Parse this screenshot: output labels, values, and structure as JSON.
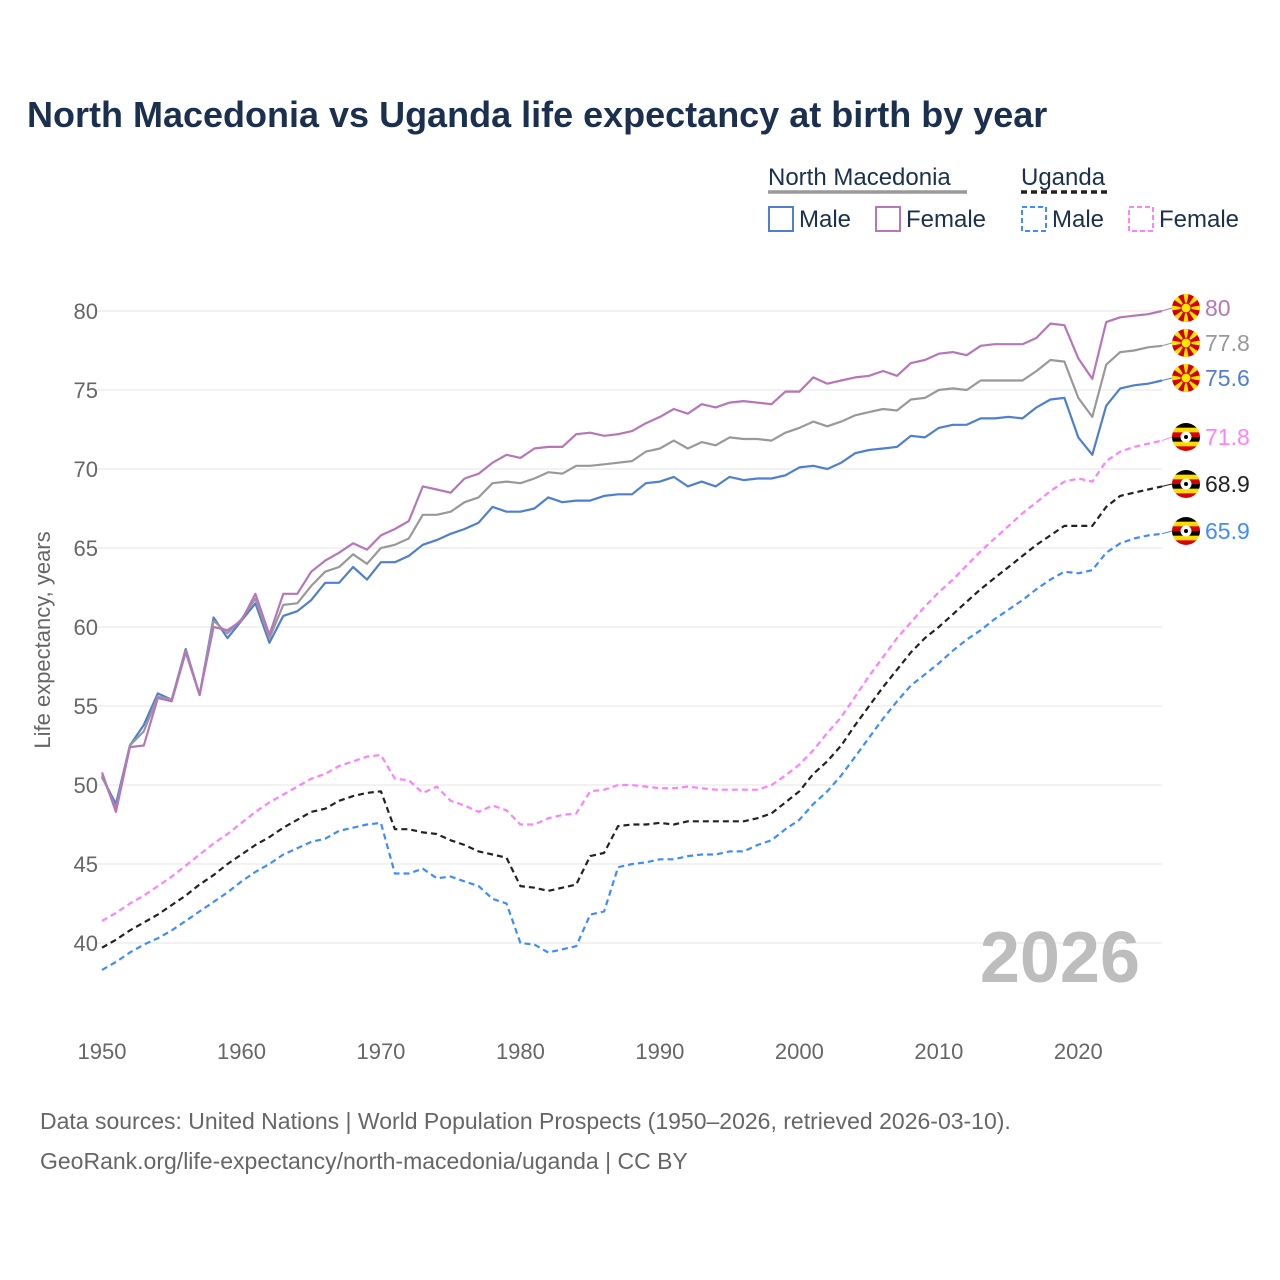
{
  "title": "North Macedonia vs Uganda life expectancy at birth by year",
  "legend": {
    "groups": [
      {
        "name": "North Macedonia",
        "items": [
          "Male",
          "Female"
        ]
      },
      {
        "name": "Uganda",
        "items": [
          "Male",
          "Female"
        ]
      }
    ]
  },
  "watermark_year": "2026",
  "footer": {
    "line1": "Data sources: United Nations | World Population Prospects (1950–2026, retrieved 2026-03-10).",
    "line2": "GeoRank.org/life-expectancy/north-macedonia/uganda | CC BY"
  },
  "chart_data": {
    "type": "line",
    "title": "North Macedonia vs Uganda life expectancy at birth by year",
    "xlabel": "",
    "ylabel": "Life expectancy, years",
    "xlim": [
      1950,
      2026
    ],
    "ylim": [
      36,
      82
    ],
    "xticks": [
      1950,
      1960,
      1970,
      1980,
      1990,
      2000,
      2010,
      2020
    ],
    "yticks": [
      40,
      45,
      50,
      55,
      60,
      65,
      70,
      75,
      80
    ],
    "grid": true,
    "legend_position": "top-right",
    "x_start": 1950,
    "series": [
      {
        "name": "North Macedonia Female",
        "country": "North Macedonia",
        "flag": "north-macedonia",
        "color": "#b676b9",
        "dashed": false,
        "end_label": "80",
        "values": [
          50.8,
          48.3,
          52.4,
          52.5,
          55.5,
          55.3,
          58.4,
          55.7,
          60.0,
          59.8,
          60.4,
          62.1,
          59.5,
          62.1,
          62.1,
          63.5,
          64.2,
          64.7,
          65.3,
          64.9,
          65.8,
          66.2,
          66.7,
          68.9,
          68.7,
          68.5,
          69.4,
          69.7,
          70.4,
          70.9,
          70.7,
          71.3,
          71.4,
          71.4,
          72.2,
          72.3,
          72.1,
          72.2,
          72.4,
          72.9,
          73.3,
          73.8,
          73.5,
          74.1,
          73.9,
          74.2,
          74.3,
          74.2,
          74.1,
          74.9,
          74.9,
          75.8,
          75.4,
          75.6,
          75.8,
          75.9,
          76.2,
          75.9,
          76.7,
          76.9,
          77.3,
          77.4,
          77.2,
          77.8,
          77.9,
          77.9,
          77.9,
          78.3,
          79.2,
          79.1,
          77.0,
          75.7,
          79.3,
          79.6,
          79.7,
          79.8,
          80.0
        ]
      },
      {
        "name": "North Macedonia Total",
        "country": "North Macedonia",
        "flag": "north-macedonia",
        "color": "#999999",
        "dashed": false,
        "end_label": "77.8",
        "values": [
          50.6,
          48.5,
          52.5,
          53.4,
          55.6,
          55.4,
          58.5,
          55.7,
          60.4,
          59.6,
          60.5,
          61.8,
          59.3,
          61.4,
          61.5,
          62.6,
          63.5,
          63.8,
          64.6,
          64.0,
          65.0,
          65.2,
          65.6,
          67.1,
          67.1,
          67.3,
          67.9,
          68.2,
          69.1,
          69.2,
          69.1,
          69.4,
          69.8,
          69.7,
          70.2,
          70.2,
          70.3,
          70.4,
          70.5,
          71.1,
          71.3,
          71.8,
          71.3,
          71.7,
          71.5,
          72.0,
          71.9,
          71.9,
          71.8,
          72.3,
          72.6,
          73.0,
          72.7,
          73.0,
          73.4,
          73.6,
          73.8,
          73.7,
          74.4,
          74.5,
          75.0,
          75.1,
          75.0,
          75.6,
          75.6,
          75.6,
          75.6,
          76.2,
          76.9,
          76.8,
          74.5,
          73.3,
          76.6,
          77.4,
          77.5,
          77.7,
          77.8
        ]
      },
      {
        "name": "North Macedonia Male",
        "country": "North Macedonia",
        "flag": "north-macedonia",
        "color": "#4f7fcf",
        "dashed": false,
        "end_label": "75.6",
        "values": [
          50.5,
          48.8,
          52.5,
          53.8,
          55.8,
          55.4,
          58.6,
          55.7,
          60.6,
          59.3,
          60.4,
          61.5,
          59.0,
          60.7,
          61.0,
          61.7,
          62.8,
          62.8,
          63.8,
          63.0,
          64.1,
          64.1,
          64.5,
          65.2,
          65.5,
          65.9,
          66.2,
          66.6,
          67.6,
          67.3,
          67.3,
          67.5,
          68.2,
          67.9,
          68.0,
          68.0,
          68.3,
          68.4,
          68.4,
          69.1,
          69.2,
          69.5,
          68.9,
          69.2,
          68.9,
          69.5,
          69.3,
          69.4,
          69.4,
          69.6,
          70.1,
          70.2,
          70.0,
          70.4,
          71.0,
          71.2,
          71.3,
          71.4,
          72.1,
          72.0,
          72.6,
          72.8,
          72.8,
          73.2,
          73.2,
          73.3,
          73.2,
          73.9,
          74.4,
          74.5,
          72.0,
          70.9,
          74.0,
          75.1,
          75.3,
          75.4,
          75.6
        ]
      },
      {
        "name": "Uganda Female",
        "country": "Uganda",
        "flag": "uganda",
        "color": "#ff80ff",
        "dashed": true,
        "end_label": "71.8",
        "values": [
          41.4,
          41.9,
          42.5,
          43.0,
          43.6,
          44.2,
          44.9,
          45.6,
          46.3,
          46.9,
          47.6,
          48.3,
          48.9,
          49.4,
          49.9,
          50.4,
          50.7,
          51.2,
          51.5,
          51.8,
          51.9,
          50.4,
          50.3,
          49.5,
          49.9,
          49.0,
          48.7,
          48.3,
          48.7,
          48.4,
          47.5,
          47.5,
          47.9,
          48.1,
          48.2,
          49.6,
          49.7,
          50.0,
          50.0,
          49.9,
          49.8,
          49.8,
          49.9,
          49.8,
          49.7,
          49.7,
          49.7,
          49.7,
          50.0,
          50.6,
          51.3,
          52.2,
          53.3,
          54.3,
          55.6,
          56.9,
          58.1,
          59.3,
          60.3,
          61.3,
          62.2,
          63.0,
          63.9,
          64.8,
          65.6,
          66.4,
          67.2,
          67.9,
          68.6,
          69.2,
          69.4,
          69.2,
          70.5,
          71.1,
          71.4,
          71.6,
          71.8
        ]
      },
      {
        "name": "Uganda Total",
        "country": "Uganda",
        "flag": "uganda",
        "color": "#222222",
        "dashed": true,
        "end_label": "68.9",
        "values": [
          39.7,
          40.2,
          40.8,
          41.3,
          41.8,
          42.4,
          43.0,
          43.7,
          44.3,
          45.0,
          45.6,
          46.2,
          46.7,
          47.3,
          47.8,
          48.3,
          48.5,
          49.0,
          49.3,
          49.5,
          49.6,
          47.2,
          47.2,
          47.0,
          46.9,
          46.5,
          46.2,
          45.8,
          45.6,
          45.4,
          43.6,
          43.5,
          43.3,
          43.5,
          43.7,
          45.5,
          45.7,
          47.4,
          47.5,
          47.5,
          47.6,
          47.5,
          47.7,
          47.7,
          47.7,
          47.7,
          47.7,
          47.9,
          48.2,
          48.9,
          49.6,
          50.7,
          51.5,
          52.5,
          53.8,
          55.0,
          56.2,
          57.3,
          58.4,
          59.3,
          60.0,
          60.8,
          61.6,
          62.4,
          63.1,
          63.8,
          64.5,
          65.2,
          65.8,
          66.4,
          66.4,
          66.4,
          67.6,
          68.3,
          68.5,
          68.7,
          68.9
        ]
      },
      {
        "name": "Uganda Male",
        "country": "Uganda",
        "flag": "uganda",
        "color": "#3f8cff",
        "dashed": true,
        "end_label": "65.9",
        "values": [
          38.3,
          38.8,
          39.4,
          39.9,
          40.3,
          40.8,
          41.4,
          42.0,
          42.6,
          43.2,
          43.9,
          44.5,
          45.0,
          45.6,
          46.0,
          46.4,
          46.6,
          47.1,
          47.3,
          47.5,
          47.6,
          44.4,
          44.4,
          44.7,
          44.1,
          44.2,
          43.9,
          43.6,
          42.8,
          42.5,
          40.0,
          39.9,
          39.4,
          39.6,
          39.8,
          41.8,
          42.0,
          44.8,
          45.0,
          45.1,
          45.3,
          45.3,
          45.5,
          45.6,
          45.6,
          45.8,
          45.8,
          46.2,
          46.5,
          47.2,
          47.8,
          48.8,
          49.6,
          50.6,
          51.8,
          53.0,
          54.2,
          55.3,
          56.3,
          57.0,
          57.7,
          58.5,
          59.2,
          59.8,
          60.5,
          61.1,
          61.7,
          62.4,
          63.0,
          63.5,
          63.4,
          63.6,
          64.7,
          65.3,
          65.6,
          65.8,
          65.9
        ]
      }
    ]
  }
}
